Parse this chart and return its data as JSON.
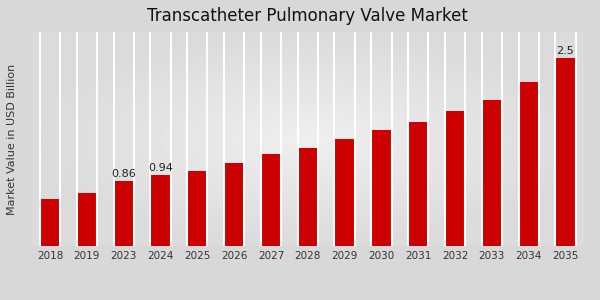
{
  "title": "Transcatheter Pulmonary Valve Market",
  "ylabel": "Market Value in USD Billion",
  "categories": [
    "2018",
    "2019",
    "2023",
    "2024",
    "2025",
    "2026",
    "2027",
    "2028",
    "2029",
    "2030",
    "2031",
    "2032",
    "2033",
    "2034",
    "2035"
  ],
  "values": [
    0.62,
    0.7,
    0.86,
    0.94,
    1.0,
    1.1,
    1.22,
    1.3,
    1.42,
    1.55,
    1.65,
    1.8,
    1.95,
    2.18,
    2.5
  ],
  "bar_color": "#CC0000",
  "bg_color_center": "#e8e8e8",
  "bg_color_edge": "#c8c8c8",
  "annotated_bars": {
    "2023": "0.86",
    "2024": "0.94",
    "2035": "2.5"
  },
  "ylim": [
    0,
    2.85
  ],
  "title_fontsize": 12,
  "ylabel_fontsize": 8,
  "tick_fontsize": 7.5,
  "annot_fontsize": 8,
  "red_strip_color": "#CC0000",
  "divider_color": "#ffffff",
  "bar_width": 0.55
}
